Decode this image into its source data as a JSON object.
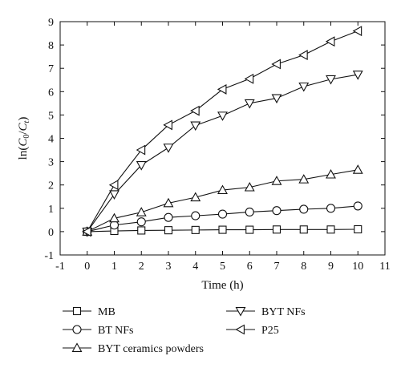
{
  "chart_data": {
    "type": "line",
    "xlabel": "Time (h)",
    "ylabel": {
      "prefix": "ln(",
      "c0_base": "C",
      "c0_sub": "0",
      "slash": "/",
      "ct_base": "C",
      "ct_sub": "t",
      "suffix": ")"
    },
    "xlim": [
      -1,
      11
    ],
    "ylim": [
      -1,
      9
    ],
    "xticks": [
      -1,
      0,
      1,
      2,
      3,
      4,
      5,
      6,
      7,
      8,
      9,
      10,
      11
    ],
    "yticks": [
      -1,
      0,
      1,
      2,
      3,
      4,
      5,
      6,
      7,
      8,
      9
    ],
    "x": [
      0,
      1,
      2,
      3,
      4,
      5,
      6,
      7,
      8,
      9,
      10
    ],
    "legend_position": "below-plot",
    "series": [
      {
        "name": "MB",
        "marker": "square",
        "values": [
          0,
          0.03,
          0.05,
          0.06,
          0.07,
          0.08,
          0.08,
          0.09,
          0.09,
          0.09,
          0.1
        ]
      },
      {
        "name": "BT NFs",
        "marker": "circle",
        "values": [
          0,
          0.28,
          0.42,
          0.61,
          0.68,
          0.75,
          0.84,
          0.9,
          0.96,
          1.0,
          1.1
        ]
      },
      {
        "name": "BYT ceramics powders",
        "marker": "triangle-up",
        "values": [
          0,
          0.57,
          0.83,
          1.22,
          1.47,
          1.78,
          1.9,
          2.17,
          2.24,
          2.45,
          2.65
        ]
      },
      {
        "name": "BYT NFs",
        "marker": "triangle-down",
        "values": [
          0,
          1.6,
          2.85,
          3.6,
          4.55,
          4.97,
          5.5,
          5.72,
          6.22,
          6.53,
          6.73
        ]
      },
      {
        "name": "P25",
        "marker": "triangle-left",
        "values": [
          0,
          2.0,
          3.5,
          4.57,
          5.18,
          6.1,
          6.55,
          7.18,
          7.57,
          8.15,
          8.6
        ]
      }
    ]
  }
}
